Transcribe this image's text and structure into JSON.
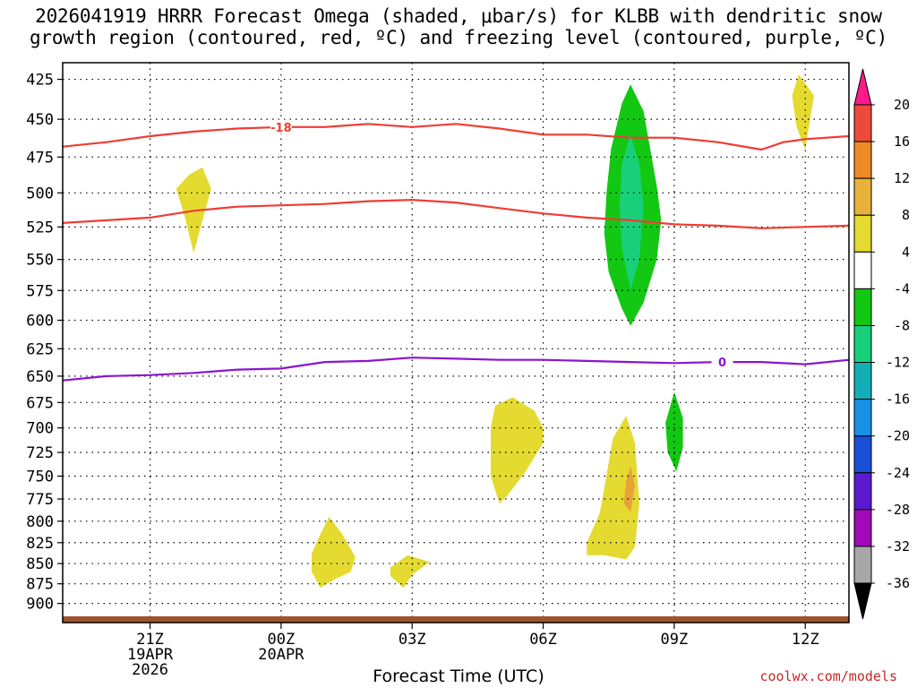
{
  "title": {
    "line1": "2026041919 HRRR Forecast Omega (shaded, μbar/s) for KLBB with dendritic snow",
    "line2": "growth region (contoured, red, ºC) and freezing level (contoured, purple, ºC)"
  },
  "xlabel": "Forecast Time (UTC)",
  "credit": "coolwx.com/models",
  "chart_data": {
    "type": "contour-timeheight",
    "y_axis": {
      "quantity": "pressure (mb)",
      "ticks": [
        425,
        450,
        475,
        500,
        525,
        550,
        575,
        600,
        625,
        650,
        675,
        700,
        725,
        750,
        775,
        800,
        825,
        850,
        875,
        900
      ],
      "range": [
        415,
        925
      ],
      "scale": "log-pressure",
      "grid": "dotted"
    },
    "x_axis": {
      "quantity": "forecast hour (UTC)",
      "range_hours_from_19Z": [
        0,
        18
      ],
      "ticks": [
        {
          "h": 2,
          "label": "21Z",
          "sub1": "19APR",
          "sub2": "2026"
        },
        {
          "h": 5,
          "label": "00Z",
          "sub1": "20APR",
          "sub2": ""
        },
        {
          "h": 8,
          "label": "03Z",
          "sub1": "",
          "sub2": ""
        },
        {
          "h": 11,
          "label": "06Z",
          "sub1": "",
          "sub2": ""
        },
        {
          "h": 14,
          "label": "09Z",
          "sub1": "",
          "sub2": ""
        },
        {
          "h": 17,
          "label": "12Z",
          "sub1": "",
          "sub2": ""
        }
      ]
    },
    "colorbar": {
      "labels": [
        "20",
        "16",
        "12",
        "8",
        "4",
        "-4",
        "-8",
        "-12",
        "-16",
        "-20",
        "-24",
        "-28",
        "-32",
        "-36"
      ],
      "colors_top_to_bottom": [
        "#ff1a8c",
        "#ee4a3a",
        "#f08a24",
        "#e8b23a",
        "#e4da30",
        "#ffffff",
        "#12c812",
        "#19d07a",
        "#12b0b6",
        "#1890e8",
        "#1a50d8",
        "#5a1ad0",
        "#a00ab8",
        "#a8a8a8",
        "#000000"
      ]
    },
    "contours": [
      {
        "name": "-18",
        "color": "#f03c32",
        "points": [
          [
            0,
            468
          ],
          [
            1,
            465
          ],
          [
            2,
            461
          ],
          [
            3,
            458
          ],
          [
            4,
            456
          ],
          [
            5,
            455
          ],
          [
            6,
            455
          ],
          [
            7,
            453
          ],
          [
            8,
            455
          ],
          [
            9,
            453
          ],
          [
            10,
            456
          ],
          [
            11,
            460
          ],
          [
            12,
            460
          ],
          [
            13,
            462
          ],
          [
            14,
            462
          ],
          [
            15,
            465
          ],
          [
            16,
            470
          ],
          [
            16.5,
            465
          ],
          [
            17,
            463
          ],
          [
            18,
            461
          ]
        ]
      },
      {
        "name": "",
        "color": "#f03c32",
        "points": [
          [
            0,
            522
          ],
          [
            1,
            520
          ],
          [
            2,
            518
          ],
          [
            3,
            513
          ],
          [
            4,
            510
          ],
          [
            5,
            509
          ],
          [
            6,
            508
          ],
          [
            7,
            506
          ],
          [
            8,
            505
          ],
          [
            9,
            507
          ],
          [
            10,
            511
          ],
          [
            11,
            515
          ],
          [
            12,
            518
          ],
          [
            13,
            520
          ],
          [
            14,
            523
          ],
          [
            15,
            524
          ],
          [
            16,
            526
          ],
          [
            17,
            525
          ],
          [
            18,
            524
          ]
        ]
      },
      {
        "name": "0",
        "color": "#8c14d0",
        "points": [
          [
            0,
            654
          ],
          [
            1,
            650
          ],
          [
            2,
            649
          ],
          [
            3,
            647
          ],
          [
            4,
            644
          ],
          [
            5,
            643
          ],
          [
            6,
            637
          ],
          [
            7,
            636
          ],
          [
            8,
            633
          ],
          [
            9,
            634
          ],
          [
            10,
            635
          ],
          [
            11,
            635
          ],
          [
            12,
            636
          ],
          [
            13,
            637
          ],
          [
            14,
            638
          ],
          [
            15,
            637
          ],
          [
            16,
            637
          ],
          [
            17,
            639
          ],
          [
            18,
            635
          ]
        ]
      }
    ],
    "shaded_regions": [
      {
        "value_range": "4 to 8",
        "color": "#e4da30",
        "points": [
          [
            2.6,
            497
          ],
          [
            2.9,
            487
          ],
          [
            3.2,
            482
          ],
          [
            3.4,
            497
          ],
          [
            3.2,
            520
          ],
          [
            3.0,
            545
          ],
          [
            2.8,
            518
          ]
        ]
      },
      {
        "value_range": "4 to 8",
        "color": "#e4da30",
        "points": [
          [
            16.7,
            435
          ],
          [
            16.85,
            422
          ],
          [
            17.2,
            435
          ],
          [
            17.0,
            470
          ],
          [
            16.8,
            455
          ]
        ]
      },
      {
        "value_range": "4 to 8",
        "color": "#e4da30",
        "points": [
          [
            5.7,
            838
          ],
          [
            5.9,
            815
          ],
          [
            6.1,
            795
          ],
          [
            6.4,
            815
          ],
          [
            6.7,
            842
          ],
          [
            6.6,
            860
          ],
          [
            6.2,
            870
          ],
          [
            5.9,
            880
          ],
          [
            5.7,
            860
          ]
        ]
      },
      {
        "value_range": "4 to 8",
        "color": "#e4da30",
        "points": [
          [
            7.5,
            855
          ],
          [
            7.9,
            840
          ],
          [
            8.4,
            848
          ],
          [
            8.0,
            864
          ],
          [
            7.8,
            880
          ],
          [
            7.5,
            865
          ]
        ]
      },
      {
        "value_range": "4 to 8",
        "color": "#e4da30",
        "points": [
          [
            9.8,
            700
          ],
          [
            9.9,
            678
          ],
          [
            10.3,
            670
          ],
          [
            10.8,
            683
          ],
          [
            11.0,
            700
          ],
          [
            11.0,
            715
          ],
          [
            10.6,
            745
          ],
          [
            10.2,
            770
          ],
          [
            10.0,
            780
          ],
          [
            9.8,
            750
          ]
        ]
      },
      {
        "value_range": "4 to 8",
        "color": "#e4da30",
        "points": [
          [
            12.0,
            825
          ],
          [
            12.3,
            790
          ],
          [
            12.6,
            710
          ],
          [
            12.9,
            688
          ],
          [
            13.1,
            715
          ],
          [
            13.2,
            780
          ],
          [
            13.1,
            830
          ],
          [
            12.9,
            845
          ],
          [
            12.4,
            840
          ],
          [
            12.0,
            840
          ]
        ]
      },
      {
        "value_range": "8 to 12",
        "color": "#e8a23a",
        "points": [
          [
            12.85,
            780
          ],
          [
            12.9,
            755
          ],
          [
            13.0,
            740
          ],
          [
            13.1,
            760
          ],
          [
            13.0,
            790
          ]
        ]
      },
      {
        "value_range": "-4 to -8",
        "color": "#12c812",
        "points": [
          [
            12.8,
            440
          ],
          [
            13.0,
            428
          ],
          [
            13.3,
            445
          ],
          [
            13.6,
            495
          ],
          [
            13.7,
            520
          ],
          [
            13.6,
            550
          ],
          [
            13.3,
            585
          ],
          [
            13.0,
            605
          ],
          [
            12.8,
            590
          ],
          [
            12.5,
            560
          ],
          [
            12.4,
            530
          ],
          [
            12.45,
            500
          ],
          [
            12.55,
            470
          ]
        ]
      },
      {
        "value_range": "-8 to -12",
        "color": "#19d07a",
        "points": [
          [
            13.0,
            460
          ],
          [
            13.2,
            480
          ],
          [
            13.3,
            510
          ],
          [
            13.2,
            550
          ],
          [
            13.0,
            575
          ],
          [
            12.8,
            540
          ],
          [
            12.75,
            510
          ],
          [
            12.8,
            480
          ]
        ]
      },
      {
        "value_range": "-4 to -8",
        "color": "#12c812",
        "points": [
          [
            14.0,
            665
          ],
          [
            14.2,
            690
          ],
          [
            14.2,
            720
          ],
          [
            14.05,
            745
          ],
          [
            13.85,
            725
          ],
          [
            13.8,
            695
          ]
        ]
      }
    ]
  }
}
